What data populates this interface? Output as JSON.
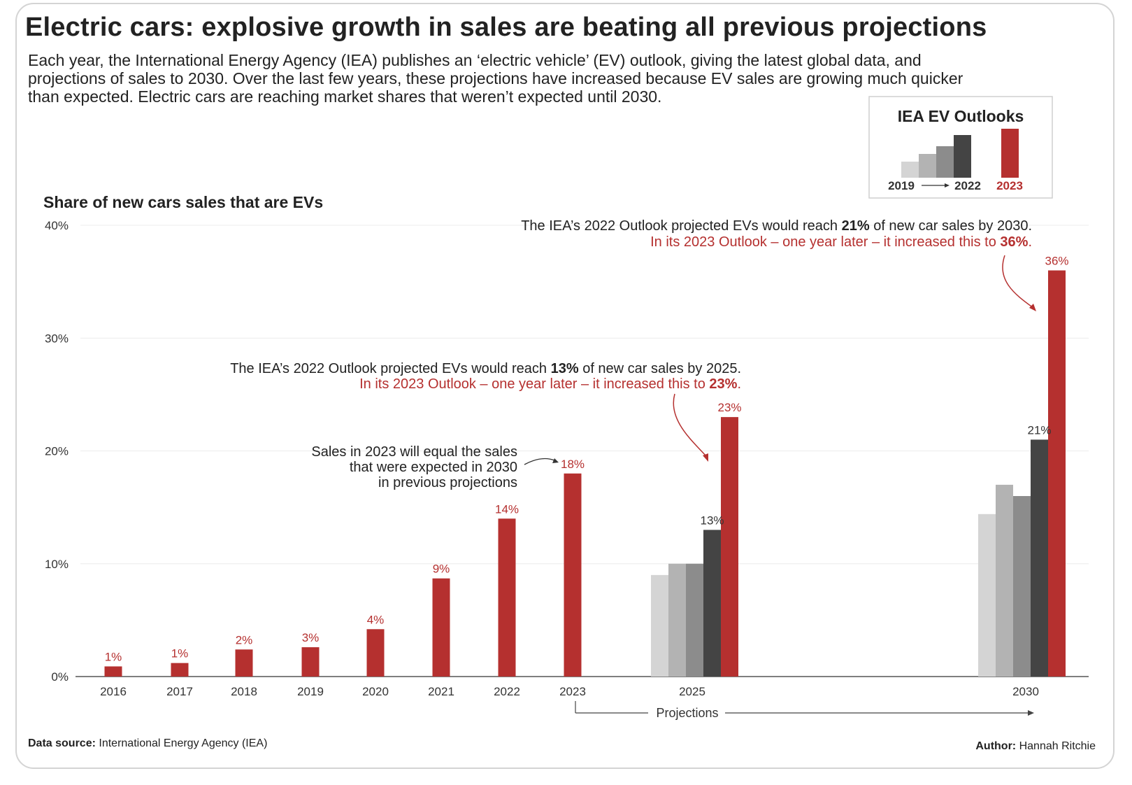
{
  "header": {
    "title": "Electric cars: explosive growth in sales are beating all previous projections",
    "subtitle_lines": [
      "Each year, the International Energy Agency (IEA) publishes an ‘electric vehicle’ (EV) outlook, giving the latest global data, and",
      "projections of sales to 2030. Over the last few years, these projections have increased because EV sales are growing much quicker",
      "than expected. Electric cars are reaching market shares that weren’t expected until 2030."
    ]
  },
  "legend": {
    "title": "IEA EV Outlooks",
    "label_start": "2019",
    "label_end": "2022",
    "label_latest": "2023"
  },
  "footer": {
    "source_label": "Data source:",
    "source_value": "International Energy Agency (IEA)",
    "author_label": "Author:",
    "author_value": "Hannah Ritchie"
  },
  "chart_data": {
    "type": "bar",
    "title": "Share of new cars sales that are EVs",
    "ylim": [
      0,
      40
    ],
    "yticks": [
      0,
      10,
      20,
      30,
      40
    ],
    "ytick_labels": [
      "0%",
      "10%",
      "20%",
      "30%",
      "40%"
    ],
    "grid": true,
    "colors": {
      "actual": "#b5302f",
      "outlook_2019": "#d4d4d4",
      "outlook_2020": "#b3b3b3",
      "outlook_2021": "#8c8c8c",
      "outlook_2022": "#444444",
      "outlook_2023": "#b5302f",
      "annotation_red": "#b5302f"
    },
    "actual": {
      "categories": [
        "2016",
        "2017",
        "2018",
        "2019",
        "2020",
        "2021",
        "2022",
        "2023"
      ],
      "values": [
        0.9,
        1.2,
        2.4,
        2.6,
        4.2,
        8.7,
        14,
        18
      ],
      "labels": [
        "1%",
        "1%",
        "2%",
        "3%",
        "4%",
        "9%",
        "14%",
        "18%"
      ]
    },
    "projections": [
      {
        "category": "2025",
        "values": [
          9,
          10,
          10,
          13,
          23
        ],
        "labels": [
          "",
          "",
          "",
          "13%",
          "23%"
        ]
      },
      {
        "category": "2030",
        "values": [
          14.4,
          17,
          16,
          21,
          36
        ],
        "labels": [
          "",
          "",
          "",
          "21%",
          "36%"
        ]
      }
    ],
    "projections_label": "Projections",
    "annotations": {
      "a2030_line1": [
        "The IEA’s 2022 Outlook projected EVs would reach ",
        "21%",
        " of new car sales by 2030."
      ],
      "a2030_line2": [
        "In its 2023 Outlook – one year later – it increased this to ",
        "36%",
        "."
      ],
      "a2025_line1": [
        "The IEA’s 2022 Outlook projected EVs would reach ",
        "13%",
        " of new car sales by 2025."
      ],
      "a2025_line2": [
        "In its 2023 Outlook – one year later – it increased this to ",
        "23%",
        "."
      ],
      "a2023_lines": [
        "Sales in 2023 will  equal the sales",
        "that were expected in 2030",
        "in previous projections"
      ]
    }
  }
}
